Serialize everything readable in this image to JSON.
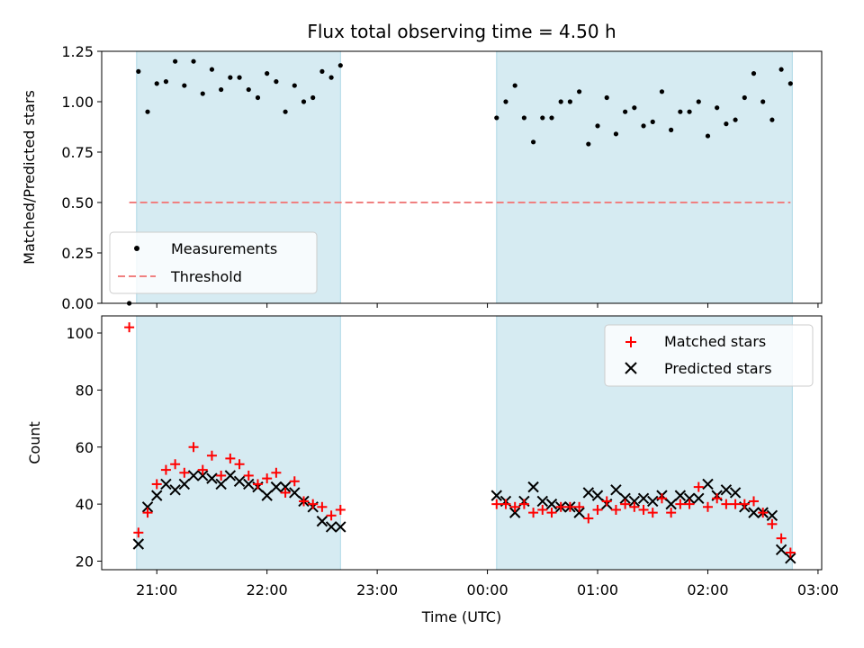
{
  "chart_data": [
    {
      "type": "scatter",
      "title": "Flux total observing time = 4.50 h",
      "xlabel": "",
      "ylabel": "Matched/Predicted stars",
      "ylim": [
        0,
        1.25
      ],
      "xlim": [
        "20:30",
        "03:02"
      ],
      "yticks": [
        "0.00",
        "0.25",
        "0.50",
        "0.75",
        "1.00",
        "1.25"
      ],
      "grid": false,
      "legend_position": "lower-left",
      "legend": [
        "Measurements",
        "Threshold"
      ],
      "shaded_intervals": [
        [
          "20:49",
          "22:40"
        ],
        [
          "00:05",
          "02:46"
        ]
      ],
      "threshold": {
        "name": "Threshold",
        "value": 0.5,
        "x_range": [
          "20:45",
          "02:45"
        ],
        "color": "#f08080"
      },
      "series": [
        {
          "name": "Measurements",
          "color": "#000000",
          "points": [
            [
              "20:45",
              0.0
            ],
            [
              "20:50",
              1.15
            ],
            [
              "20:55",
              0.95
            ],
            [
              "21:00",
              1.09
            ],
            [
              "21:05",
              1.1
            ],
            [
              "21:10",
              1.2
            ],
            [
              "21:15",
              1.08
            ],
            [
              "21:20",
              1.2
            ],
            [
              "21:25",
              1.04
            ],
            [
              "21:30",
              1.16
            ],
            [
              "21:35",
              1.06
            ],
            [
              "21:40",
              1.12
            ],
            [
              "21:45",
              1.12
            ],
            [
              "21:50",
              1.06
            ],
            [
              "21:55",
              1.02
            ],
            [
              "22:00",
              1.14
            ],
            [
              "22:05",
              1.1
            ],
            [
              "22:10",
              0.95
            ],
            [
              "22:15",
              1.08
            ],
            [
              "22:20",
              1.0
            ],
            [
              "22:25",
              1.02
            ],
            [
              "22:30",
              1.15
            ],
            [
              "22:35",
              1.12
            ],
            [
              "22:40",
              1.18
            ],
            [
              "00:05",
              0.92
            ],
            [
              "00:10",
              1.0
            ],
            [
              "00:15",
              1.08
            ],
            [
              "00:20",
              0.92
            ],
            [
              "00:25",
              0.8
            ],
            [
              "00:30",
              0.92
            ],
            [
              "00:35",
              0.92
            ],
            [
              "00:40",
              1.0
            ],
            [
              "00:45",
              1.0
            ],
            [
              "00:50",
              1.05
            ],
            [
              "00:55",
              0.79
            ],
            [
              "01:00",
              0.88
            ],
            [
              "01:05",
              1.02
            ],
            [
              "01:10",
              0.84
            ],
            [
              "01:15",
              0.95
            ],
            [
              "01:20",
              0.97
            ],
            [
              "01:25",
              0.88
            ],
            [
              "01:30",
              0.9
            ],
            [
              "01:35",
              1.05
            ],
            [
              "01:40",
              0.86
            ],
            [
              "01:45",
              0.95
            ],
            [
              "01:50",
              0.95
            ],
            [
              "01:55",
              1.0
            ],
            [
              "02:00",
              0.83
            ],
            [
              "02:05",
              0.97
            ],
            [
              "02:10",
              0.89
            ],
            [
              "02:15",
              0.91
            ],
            [
              "02:20",
              1.02
            ],
            [
              "02:25",
              1.14
            ],
            [
              "02:30",
              1.0
            ],
            [
              "02:35",
              0.91
            ],
            [
              "02:40",
              1.16
            ],
            [
              "02:45",
              1.09
            ]
          ]
        }
      ]
    },
    {
      "type": "scatter",
      "title": "",
      "xlabel": "Time (UTC)",
      "ylabel": "Count",
      "ylim": [
        17,
        106
      ],
      "xlim": [
        "20:30",
        "03:02"
      ],
      "xticks": [
        "21:00",
        "22:00",
        "23:00",
        "00:00",
        "01:00",
        "02:00",
        "03:00"
      ],
      "yticks": [
        "20",
        "40",
        "60",
        "80",
        "100"
      ],
      "grid": false,
      "legend_position": "upper-right",
      "legend": [
        "Matched stars",
        "Predicted stars"
      ],
      "shaded_intervals": [
        [
          "20:49",
          "22:40"
        ],
        [
          "00:05",
          "02:46"
        ]
      ],
      "series": [
        {
          "name": "Matched stars",
          "marker": "plus",
          "color": "#ff0000",
          "points": [
            [
              "20:45",
              102
            ],
            [
              "20:50",
              30
            ],
            [
              "20:55",
              37
            ],
            [
              "21:00",
              47
            ],
            [
              "21:05",
              52
            ],
            [
              "21:10",
              54
            ],
            [
              "21:15",
              51
            ],
            [
              "21:20",
              60
            ],
            [
              "21:25",
              52
            ],
            [
              "21:30",
              57
            ],
            [
              "21:35",
              50
            ],
            [
              "21:40",
              56
            ],
            [
              "21:45",
              54
            ],
            [
              "21:50",
              50
            ],
            [
              "21:55",
              47
            ],
            [
              "22:00",
              49
            ],
            [
              "22:05",
              51
            ],
            [
              "22:10",
              44
            ],
            [
              "22:15",
              48
            ],
            [
              "22:20",
              41
            ],
            [
              "22:25",
              40
            ],
            [
              "22:30",
              39
            ],
            [
              "22:35",
              36
            ],
            [
              "22:40",
              38
            ],
            [
              "00:05",
              40
            ],
            [
              "00:10",
              40
            ],
            [
              "00:15",
              39
            ],
            [
              "00:20",
              40
            ],
            [
              "00:25",
              37
            ],
            [
              "00:30",
              38
            ],
            [
              "00:35",
              37
            ],
            [
              "00:40",
              39
            ],
            [
              "00:45",
              39
            ],
            [
              "00:50",
              39
            ],
            [
              "00:55",
              35
            ],
            [
              "01:00",
              38
            ],
            [
              "01:05",
              41
            ],
            [
              "01:10",
              38
            ],
            [
              "01:15",
              40
            ],
            [
              "01:20",
              39
            ],
            [
              "01:25",
              38
            ],
            [
              "01:30",
              37
            ],
            [
              "01:35",
              42
            ],
            [
              "01:40",
              37
            ],
            [
              "01:45",
              40
            ],
            [
              "01:50",
              40
            ],
            [
              "01:55",
              46
            ],
            [
              "02:00",
              39
            ],
            [
              "02:05",
              42
            ],
            [
              "02:10",
              40
            ],
            [
              "02:15",
              40
            ],
            [
              "02:20",
              40
            ],
            [
              "02:25",
              41
            ],
            [
              "02:30",
              37
            ],
            [
              "02:35",
              33
            ],
            [
              "02:40",
              28
            ],
            [
              "02:45",
              23
            ]
          ]
        },
        {
          "name": "Predicted stars",
          "marker": "x",
          "color": "#000000",
          "points": [
            [
              "20:50",
              26
            ],
            [
              "20:55",
              39
            ],
            [
              "21:00",
              43
            ],
            [
              "21:05",
              47
            ],
            [
              "21:10",
              45
            ],
            [
              "21:15",
              47
            ],
            [
              "21:20",
              50
            ],
            [
              "21:25",
              50
            ],
            [
              "21:30",
              49
            ],
            [
              "21:35",
              47
            ],
            [
              "21:40",
              50
            ],
            [
              "21:45",
              48
            ],
            [
              "21:50",
              47
            ],
            [
              "21:55",
              46
            ],
            [
              "22:00",
              43
            ],
            [
              "22:05",
              46
            ],
            [
              "22:10",
              46
            ],
            [
              "22:15",
              44
            ],
            [
              "22:20",
              41
            ],
            [
              "22:25",
              39
            ],
            [
              "22:30",
              34
            ],
            [
              "22:35",
              32
            ],
            [
              "22:40",
              32
            ],
            [
              "00:05",
              43
            ],
            [
              "00:10",
              41
            ],
            [
              "00:15",
              37
            ],
            [
              "00:20",
              41
            ],
            [
              "00:25",
              46
            ],
            [
              "00:30",
              41
            ],
            [
              "00:35",
              40
            ],
            [
              "00:40",
              39
            ],
            [
              "00:45",
              39
            ],
            [
              "00:50",
              37
            ],
            [
              "00:55",
              44
            ],
            [
              "01:00",
              43
            ],
            [
              "01:05",
              40
            ],
            [
              "01:10",
              45
            ],
            [
              "01:15",
              42
            ],
            [
              "01:20",
              41
            ],
            [
              "01:25",
              42
            ],
            [
              "01:30",
              41
            ],
            [
              "01:35",
              43
            ],
            [
              "01:40",
              40
            ],
            [
              "01:45",
              43
            ],
            [
              "01:50",
              42
            ],
            [
              "01:55",
              42
            ],
            [
              "02:00",
              47
            ],
            [
              "02:05",
              43
            ],
            [
              "02:10",
              45
            ],
            [
              "02:15",
              44
            ],
            [
              "02:20",
              39
            ],
            [
              "02:25",
              37
            ],
            [
              "02:30",
              37
            ],
            [
              "02:35",
              36
            ],
            [
              "02:40",
              24
            ],
            [
              "02:45",
              21
            ]
          ]
        }
      ]
    }
  ]
}
